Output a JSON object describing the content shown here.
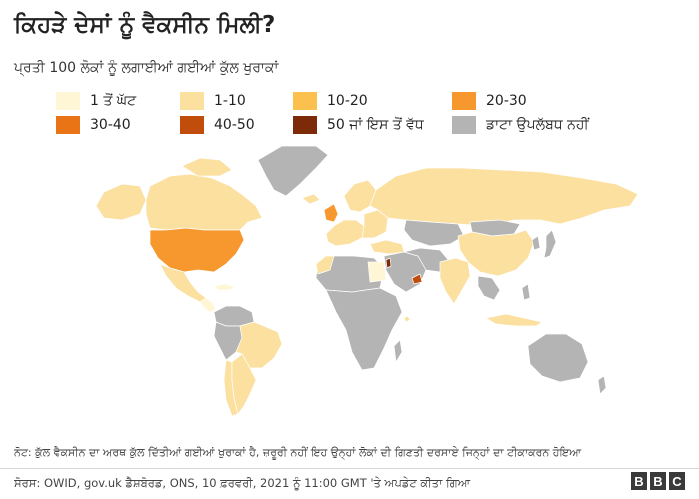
{
  "title": "ਕਿਹੜੇ ਦੇਸਾਂ ਨੂੰ ਵੈਕਸੀਨ ਮਿਲੀ?",
  "subtitle": "ਪ੍ਰਤੀ 100 ਲੋਕਾਂ ਨੂੰ ਲਗਾਈਆਂ ਗਈਆਂ ਕੁੱਲ ਖੁਰਾਕਾਂ",
  "legend": [
    {
      "label": "1 ਤੋਂ ਘੱਟ",
      "color": "#fff6d5"
    },
    {
      "label": "1-10",
      "color": "#fbe0a0"
    },
    {
      "label": "10-20",
      "color": "#fcc04e"
    },
    {
      "label": "20-30",
      "color": "#f7982e"
    },
    {
      "label": "30-40",
      "color": "#e87415"
    },
    {
      "label": "40-50",
      "color": "#c14d0c"
    },
    {
      "label": "50 ਜਾਂ ਇਸ ਤੋਂ ਵੱਧ",
      "color": "#7d2a08"
    },
    {
      "label": "ਡਾਟਾ ਉਪਲੱਬਧ ਨਹੀਂ",
      "color": "#b4b4b4"
    }
  ],
  "note": "ਨੋਟ: ਕੁੱਲ ਵੈਕਸੀਨ ਦਾ ਅਰਥ ਕੁੱਲ ਦਿੱਤੀਆਂ ਗਈਆਂ ਖੁਰਾਕਾਂ ਹੈ, ਜ਼ਰੂਰੀ ਨਹੀਂ ਇਹ ਉਨ੍ਹਾਂ ਲੋਕਾਂ ਦੀ ਗਿਣਤੀ ਦਰਸਾਏ ਜਿਨ੍ਹਾਂ ਦਾ ਟੀਕਾਕਰਨ ਹੋਇਆ",
  "source": "ਸੋਰਸ: OWID, gov.uk ਡੈਸ਼ਬੋਰਡ, ONS, 10 ਫ਼ਰਵਰੀ, 2021 ਨੂੰ 11:00 GMT 'ਤੇ ਅਪਡੇਟ ਕੀਤਾ ਗਿਆ",
  "logo": [
    "B",
    "B",
    "C"
  ]
}
